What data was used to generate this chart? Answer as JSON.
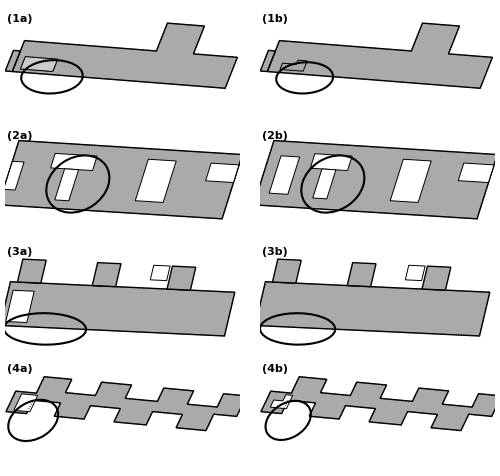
{
  "bg_color": "#ffffff",
  "fill_color": "#aaaaaa",
  "edge_color": "#000000",
  "panel_labels": [
    "(1a)",
    "(1b)",
    "(2a)",
    "(2b)",
    "(3a)",
    "(3b)",
    "(4a)",
    "(4b)"
  ]
}
